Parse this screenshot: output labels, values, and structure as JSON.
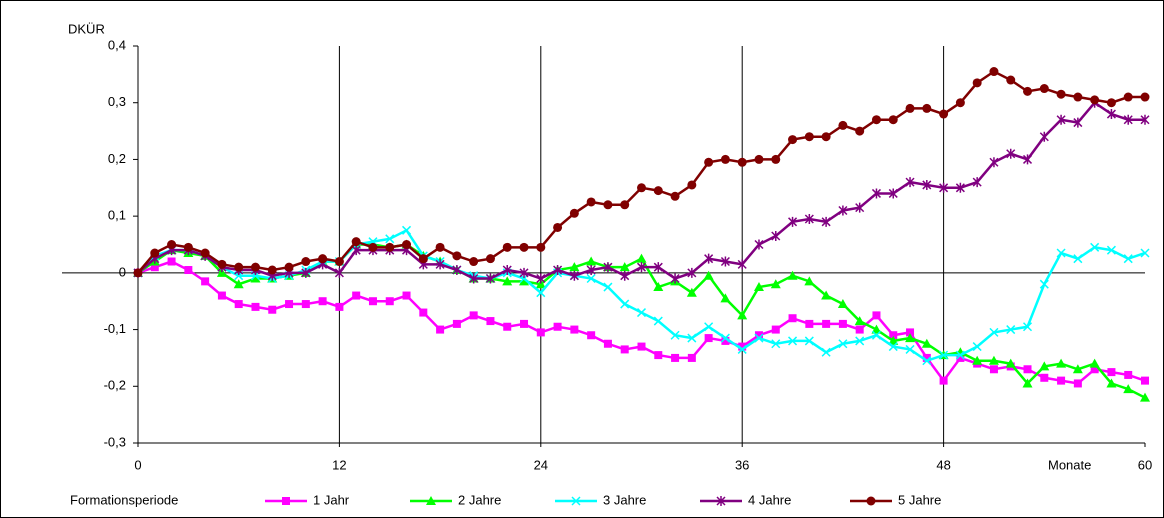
{
  "chart_data": {
    "type": "line",
    "y_label": "DKÜR",
    "x_label": "Monate",
    "legend_title": "Formationsperiode",
    "x": [
      0,
      1,
      2,
      3,
      4,
      5,
      6,
      7,
      8,
      9,
      10,
      11,
      12,
      13,
      14,
      15,
      16,
      17,
      18,
      19,
      20,
      21,
      22,
      23,
      24,
      25,
      26,
      27,
      28,
      29,
      30,
      31,
      32,
      33,
      34,
      35,
      36,
      37,
      38,
      39,
      40,
      41,
      42,
      43,
      44,
      45,
      46,
      47,
      48,
      49,
      50,
      51,
      52,
      53,
      54,
      55,
      56,
      57,
      58,
      59,
      60
    ],
    "xlim": [
      0,
      60
    ],
    "xticks": [
      0,
      12,
      24,
      36,
      48,
      60
    ],
    "ylim": [
      -0.3,
      0.4
    ],
    "yticks": [
      {
        "value": -0.3,
        "label": "-0,3"
      },
      {
        "value": -0.2,
        "label": "-0,2"
      },
      {
        "value": -0.1,
        "label": "-0,1"
      },
      0,
      {
        "value": 0.1,
        "label": "0,1"
      },
      {
        "value": 0.2,
        "label": "0,2"
      },
      {
        "value": 0.3,
        "label": "0,3"
      },
      {
        "value": 0.4,
        "label": "0,4"
      }
    ],
    "grid_x": true,
    "legend_position": "bottom",
    "series": [
      {
        "name": "1 Jahr",
        "color": "#ff00ff",
        "marker": "square",
        "values": [
          0,
          0.01,
          0.02,
          0.005,
          -0.015,
          -0.04,
          -0.055,
          -0.06,
          -0.065,
          -0.055,
          -0.055,
          -0.05,
          -0.06,
          -0.04,
          -0.05,
          -0.05,
          -0.04,
          -0.07,
          -0.1,
          -0.09,
          -0.075,
          -0.085,
          -0.095,
          -0.09,
          -0.105,
          -0.095,
          -0.1,
          -0.11,
          -0.125,
          -0.135,
          -0.13,
          -0.145,
          -0.15,
          -0.15,
          -0.115,
          -0.12,
          -0.13,
          -0.11,
          -0.1,
          -0.08,
          -0.09,
          -0.09,
          -0.09,
          -0.1,
          -0.075,
          -0.11,
          -0.105,
          -0.15,
          -0.19,
          -0.15,
          -0.16,
          -0.17,
          -0.165,
          -0.17,
          -0.185,
          -0.19,
          -0.195,
          -0.17,
          -0.175,
          -0.18,
          -0.19
        ]
      },
      {
        "name": "2 Jahre",
        "color": "#00ff00",
        "marker": "triangle",
        "values": [
          0,
          0.02,
          0.04,
          0.035,
          0.03,
          0,
          -0.02,
          -0.01,
          -0.01,
          -0.005,
          0,
          0.02,
          0.02,
          0.05,
          0.05,
          0.045,
          0.05,
          0.03,
          0.02,
          0.005,
          -0.01,
          -0.01,
          -0.015,
          -0.015,
          -0.02,
          0.005,
          0.01,
          0.02,
          0.01,
          0.01,
          0.025,
          -0.025,
          -0.015,
          -0.035,
          -0.005,
          -0.045,
          -0.075,
          -0.025,
          -0.02,
          -0.005,
          -0.015,
          -0.04,
          -0.055,
          -0.085,
          -0.1,
          -0.12,
          -0.115,
          -0.125,
          -0.145,
          -0.14,
          -0.155,
          -0.155,
          -0.16,
          -0.195,
          -0.165,
          -0.16,
          -0.17,
          -0.16,
          -0.195,
          -0.205,
          -0.22
        ]
      },
      {
        "name": "3 Jahre",
        "color": "#00ffff",
        "marker": "x",
        "values": [
          0,
          0.03,
          0.04,
          0.04,
          0.03,
          0.01,
          -0.005,
          -0.005,
          -0.01,
          -0.005,
          0.005,
          0.02,
          0.02,
          0.05,
          0.055,
          0.06,
          0.075,
          0.03,
          0.02,
          0.005,
          -0.005,
          -0.01,
          0,
          -0.01,
          -0.035,
          0,
          -0.005,
          -0.01,
          -0.025,
          -0.055,
          -0.07,
          -0.085,
          -0.11,
          -0.115,
          -0.095,
          -0.115,
          -0.135,
          -0.115,
          -0.125,
          -0.12,
          -0.12,
          -0.14,
          -0.125,
          -0.12,
          -0.11,
          -0.13,
          -0.135,
          -0.155,
          -0.145,
          -0.145,
          -0.13,
          -0.105,
          -0.1,
          -0.095,
          -0.02,
          0.035,
          0.025,
          0.045,
          0.04,
          0.025,
          0.035
        ]
      },
      {
        "name": "4 Jahre",
        "color": "#800080",
        "marker": "star",
        "values": [
          0,
          0.025,
          0.04,
          0.04,
          0.03,
          0.01,
          0.005,
          0.005,
          -0.005,
          0,
          0,
          0.015,
          0,
          0.04,
          0.04,
          0.04,
          0.04,
          0.015,
          0.015,
          0.005,
          -0.01,
          -0.01,
          0.005,
          0,
          -0.01,
          0.005,
          -0.005,
          0.005,
          0.01,
          -0.005,
          0.01,
          0.01,
          -0.01,
          0,
          0.025,
          0.02,
          0.015,
          0.05,
          0.065,
          0.09,
          0.095,
          0.09,
          0.11,
          0.115,
          0.14,
          0.14,
          0.16,
          0.155,
          0.15,
          0.15,
          0.16,
          0.195,
          0.21,
          0.2,
          0.24,
          0.27,
          0.265,
          0.3,
          0.28,
          0.27,
          0.27
        ]
      },
      {
        "name": "5 Jahre",
        "color": "#800000",
        "marker": "circle",
        "values": [
          0,
          0.035,
          0.05,
          0.045,
          0.035,
          0.015,
          0.01,
          0.01,
          0.005,
          0.01,
          0.02,
          0.025,
          0.02,
          0.055,
          0.045,
          0.045,
          0.05,
          0.025,
          0.045,
          0.03,
          0.02,
          0.025,
          0.045,
          0.045,
          0.045,
          0.08,
          0.105,
          0.125,
          0.12,
          0.12,
          0.15,
          0.145,
          0.135,
          0.155,
          0.195,
          0.2,
          0.195,
          0.2,
          0.2,
          0.235,
          0.24,
          0.24,
          0.26,
          0.25,
          0.27,
          0.27,
          0.29,
          0.29,
          0.28,
          0.3,
          0.335,
          0.355,
          0.34,
          0.32,
          0.325,
          0.315,
          0.31,
          0.305,
          0.3,
          0.31,
          0.31
        ]
      }
    ]
  }
}
